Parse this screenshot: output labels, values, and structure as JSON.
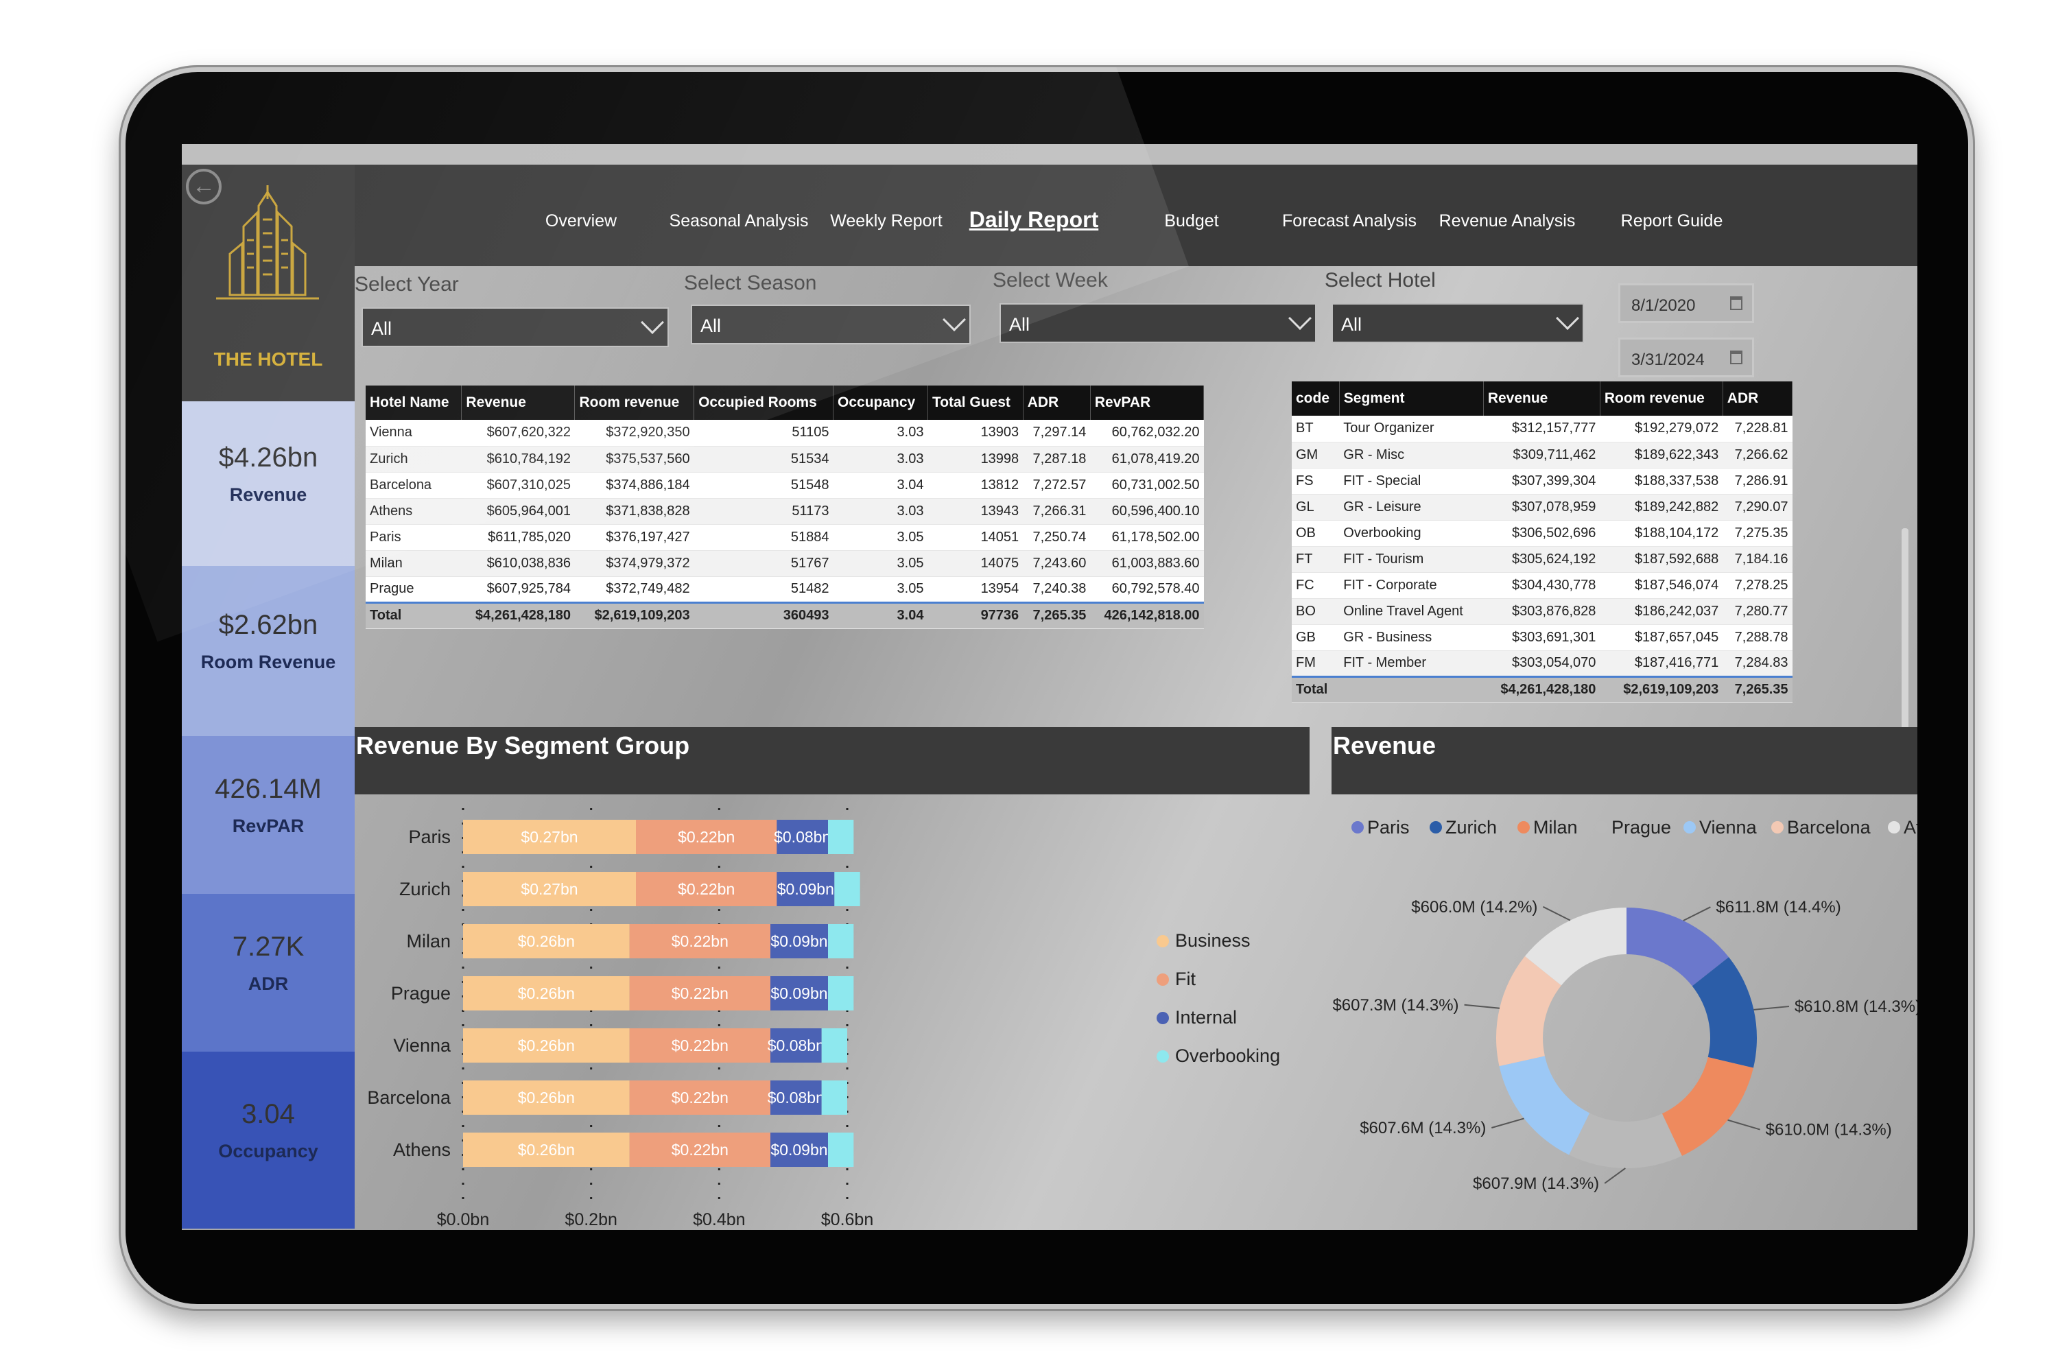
{
  "brand": {
    "name": "THE HOTEL",
    "back_icon": "back-arrow-icon"
  },
  "nav": [
    {
      "label": "Overview",
      "active": false
    },
    {
      "label": "Seasonal Analysis",
      "active": false
    },
    {
      "label": "Weekly Report",
      "active": false
    },
    {
      "label": "Daily Report",
      "active": true
    },
    {
      "label": "Budget",
      "active": false
    },
    {
      "label": "Forecast Analysis",
      "active": false
    },
    {
      "label": "Revenue Analysis",
      "active": false
    },
    {
      "label": "Report Guide",
      "active": false
    }
  ],
  "filters": {
    "year": {
      "label": "Select Year",
      "value": "All"
    },
    "season": {
      "label": "Select Season",
      "value": "All"
    },
    "week": {
      "label": "Select Week",
      "value": "All"
    },
    "hotel": {
      "label": "Select Hotel",
      "value": "All"
    },
    "date_from": "8/1/2020",
    "date_to": "3/31/2024"
  },
  "kpis": [
    {
      "value": "$4.26bn",
      "label": "Revenue",
      "color": "#c7d0ea"
    },
    {
      "value": "$2.62bn",
      "label": "Room Revenue",
      "color": "#9fb0e0"
    },
    {
      "value": "426.14M",
      "label": "RevPAR",
      "color": "#7f93d6"
    },
    {
      "value": "7.27K",
      "label": "ADR",
      "color": "#5c75c9"
    },
    {
      "value": "3.04",
      "label": "Occupancy",
      "color": "#3853b6"
    }
  ],
  "hotel_table": {
    "columns": [
      "Hotel Name",
      "Revenue",
      "Room revenue",
      "Occupied Rooms",
      "Occupancy",
      "Total Guest",
      "ADR",
      "RevPAR"
    ],
    "rows": [
      [
        "Vienna",
        "$607,620,322",
        "$372,920,350",
        "51105",
        "3.03",
        "13903",
        "7,297.14",
        "60,762,032.20"
      ],
      [
        "Zurich",
        "$610,784,192",
        "$375,537,560",
        "51534",
        "3.03",
        "13998",
        "7,287.18",
        "61,078,419.20"
      ],
      [
        "Barcelona",
        "$607,310,025",
        "$374,886,184",
        "51548",
        "3.04",
        "13812",
        "7,272.57",
        "60,731,002.50"
      ],
      [
        "Athens",
        "$605,964,001",
        "$371,838,828",
        "51173",
        "3.03",
        "13943",
        "7,266.31",
        "60,596,400.10"
      ],
      [
        "Paris",
        "$611,785,020",
        "$376,197,427",
        "51884",
        "3.05",
        "14051",
        "7,250.74",
        "61,178,502.00"
      ],
      [
        "Milan",
        "$610,038,836",
        "$374,979,372",
        "51767",
        "3.05",
        "14075",
        "7,243.60",
        "61,003,883.60"
      ],
      [
        "Prague",
        "$607,925,784",
        "$372,749,482",
        "51482",
        "3.05",
        "13954",
        "7,240.38",
        "60,792,578.40"
      ]
    ],
    "total": [
      "Total",
      "$4,261,428,180",
      "$2,619,109,203",
      "360493",
      "3.04",
      "97736",
      "7,265.35",
      "426,142,818.00"
    ]
  },
  "segment_table": {
    "columns": [
      "code",
      "Segment",
      "Revenue",
      "Room revenue",
      "ADR"
    ],
    "rows": [
      [
        "BT",
        "Tour Organizer",
        "$312,157,777",
        "$192,279,072",
        "7,228.81"
      ],
      [
        "GM",
        "GR - Misc",
        "$309,711,462",
        "$189,622,343",
        "7,266.62"
      ],
      [
        "FS",
        "FIT - Special",
        "$307,399,304",
        "$188,337,538",
        "7,286.91"
      ],
      [
        "GL",
        "GR - Leisure",
        "$307,078,959",
        "$189,242,882",
        "7,290.07"
      ],
      [
        "OB",
        "Overbooking",
        "$306,502,696",
        "$188,104,172",
        "7,275.35"
      ],
      [
        "FT",
        "FIT - Tourism",
        "$305,624,192",
        "$187,592,688",
        "7,184.16"
      ],
      [
        "FC",
        "FIT - Corporate",
        "$304,430,778",
        "$187,546,074",
        "7,278.25"
      ],
      [
        "BO",
        "Online Travel Agent",
        "$303,876,828",
        "$186,242,037",
        "7,280.77"
      ],
      [
        "GB",
        "GR - Business",
        "$303,691,301",
        "$187,657,045",
        "7,288.78"
      ],
      [
        "FM",
        "FIT - Member",
        "$303,054,070",
        "$187,416,771",
        "7,284.83"
      ]
    ],
    "total": [
      "Total",
      "",
      "$4,261,428,180",
      "$2,619,109,203",
      "7,265.35"
    ]
  },
  "segment_chart_title": "Revenue By Segment Group",
  "revenue_chart_title": "Revenue",
  "chart_data": [
    {
      "type": "bar",
      "orientation": "horizontal",
      "stacked": true,
      "title": "Revenue By Segment Group",
      "categories": [
        "Paris",
        "Zurich",
        "Milan",
        "Prague",
        "Vienna",
        "Barcelona",
        "Athens"
      ],
      "series": [
        {
          "name": "Business",
          "color": "#f9c98f",
          "values": [
            0.27,
            0.27,
            0.26,
            0.26,
            0.26,
            0.26,
            0.26
          ],
          "labels": [
            "$0.27bn",
            "$0.27bn",
            "$0.26bn",
            "$0.26bn",
            "$0.26bn",
            "$0.26bn",
            "$0.26bn"
          ]
        },
        {
          "name": "Fit",
          "color": "#ee9f7c",
          "values": [
            0.22,
            0.22,
            0.22,
            0.22,
            0.22,
            0.22,
            0.22
          ],
          "labels": [
            "$0.22bn",
            "$0.22bn",
            "$0.22bn",
            "$0.22bn",
            "$0.22bn",
            "$0.22bn",
            "$0.22bn"
          ]
        },
        {
          "name": "Internal",
          "color": "#4b62b4",
          "values": [
            0.08,
            0.09,
            0.09,
            0.09,
            0.08,
            0.08,
            0.09
          ],
          "labels": [
            "$0.08bn",
            "$0.09bn",
            "$0.09bn",
            "$0.09bn",
            "$0.08bn",
            "$0.08bn",
            "$0.09bn"
          ]
        },
        {
          "name": "Overbooking",
          "color": "#8ee8ee",
          "values": [
            0.04,
            0.04,
            0.04,
            0.04,
            0.04,
            0.04,
            0.04
          ],
          "labels": [
            "",
            "",
            "",
            "",
            "",
            "",
            ""
          ]
        }
      ],
      "xlim": [
        0,
        0.6
      ],
      "xticks": [
        "$0.0bn",
        "$0.2bn",
        "$0.4bn",
        "$0.6bn"
      ],
      "legend_position": "right"
    },
    {
      "type": "pie",
      "donut": true,
      "title": "Revenue",
      "slices": [
        {
          "name": "Paris",
          "value": 611.8,
          "label": "$611.8M (14.4%)",
          "color": "#6b78cc"
        },
        {
          "name": "Zurich",
          "value": 610.8,
          "label": "$610.8M (14.3%)",
          "color": "#2b5da8"
        },
        {
          "name": "Milan",
          "value": 610.0,
          "label": "$610.0M (14.3%)",
          "color": "#ee8a5e"
        },
        {
          "name": "Prague",
          "value": 607.9,
          "label": "$607.9M (14.3%)",
          "color": "#b9b9b9"
        },
        {
          "name": "Vienna",
          "value": 607.6,
          "label": "$607.6M (14.3%)",
          "color": "#9cc8f5"
        },
        {
          "name": "Barcelona",
          "value": 607.3,
          "label": "$607.3M (14.3%)",
          "color": "#f3c9b4"
        },
        {
          "name": "Athens",
          "value": 606.0,
          "label": "$606.0M (14.2%)",
          "color": "#e4e4e4"
        }
      ],
      "legend_position": "top"
    }
  ]
}
